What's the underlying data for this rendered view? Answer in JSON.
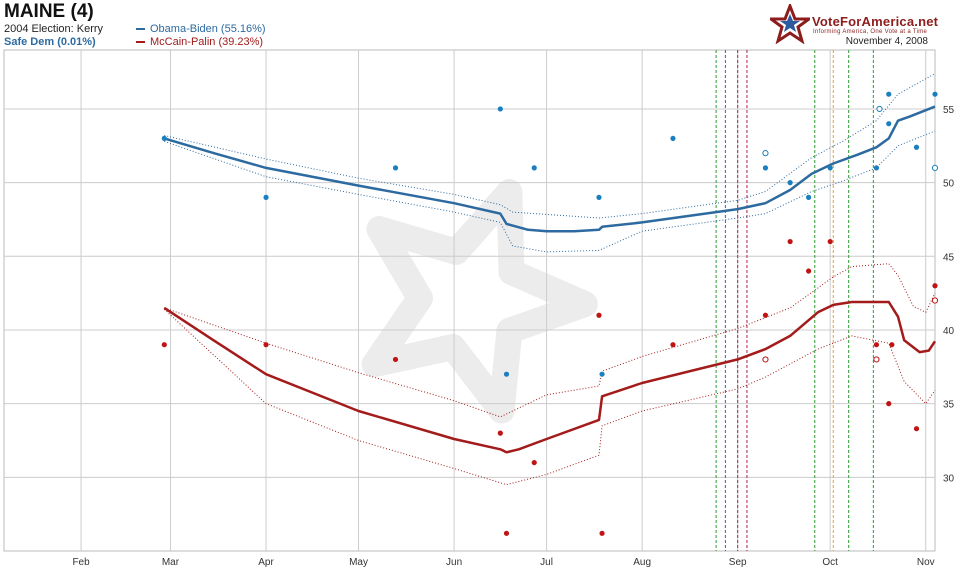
{
  "header": {
    "state": "MAINE (4)",
    "election_2004": "2004 Election: Kerry",
    "status": "Safe Dem (0.01%)",
    "legend_dem": "Obama-Biden (55.16%)",
    "legend_rep": "McCain-Palin (39.23%)",
    "logo_text": "VoteForAmerica.net",
    "logo_tagline": "Informing America, One Vote at a Time",
    "date": "November 4, 2008"
  },
  "colors": {
    "dem": "#2d6a9f",
    "dem_points": "#1a7fc1",
    "rep": "#a31b1b",
    "rep_points": "#c01414",
    "grid": "#cccccc",
    "event_green": "#2f9b2f",
    "event_blue": "#3a5bbf",
    "event_red": "#b0204a",
    "event_orange": "#f0a020"
  },
  "chart_data": {
    "type": "line",
    "x_axis": {
      "type": "date",
      "range": [
        "2008-01-07",
        "2008-11-04"
      ],
      "tick_labels": [
        "Feb",
        "Mar",
        "Apr",
        "May",
        "Jun",
        "Jul",
        "Aug",
        "Sep",
        "Oct",
        "Nov"
      ],
      "ticks": [
        "2008-02-01",
        "2008-03-01",
        "2008-04-01",
        "2008-05-01",
        "2008-06-01",
        "2008-07-01",
        "2008-08-01",
        "2008-09-01",
        "2008-10-01",
        "2008-11-01"
      ]
    },
    "y_axis": {
      "range": [
        25,
        59
      ],
      "ticks": [
        30,
        35,
        40,
        45,
        50,
        55
      ],
      "position": "right"
    },
    "grid": true,
    "series": [
      {
        "name": "Obama-Biden (55.16%)",
        "color": "#2d6a9f",
        "trend": [
          [
            "2008-02-28",
            53.0
          ],
          [
            "2008-03-15",
            52.0
          ],
          [
            "2008-04-01",
            51.0
          ],
          [
            "2008-05-01",
            49.8
          ],
          [
            "2008-06-01",
            48.6
          ],
          [
            "2008-06-16",
            47.9
          ],
          [
            "2008-06-18",
            47.2
          ],
          [
            "2008-06-25",
            46.8
          ],
          [
            "2008-07-01",
            46.7
          ],
          [
            "2008-07-10",
            46.7
          ],
          [
            "2008-07-18",
            46.8
          ],
          [
            "2008-07-19",
            47.0
          ],
          [
            "2008-08-01",
            47.3
          ],
          [
            "2008-09-01",
            48.2
          ],
          [
            "2008-09-10",
            48.6
          ],
          [
            "2008-09-18",
            49.5
          ],
          [
            "2008-09-25",
            50.6
          ],
          [
            "2008-10-02",
            51.3
          ],
          [
            "2008-10-10",
            51.9
          ],
          [
            "2008-10-16",
            52.4
          ],
          [
            "2008-10-20",
            53.0
          ],
          [
            "2008-10-23",
            54.2
          ],
          [
            "2008-10-27",
            54.5
          ],
          [
            "2008-11-04",
            55.16
          ]
        ],
        "upper": [
          [
            "2008-02-28",
            53.2
          ],
          [
            "2008-04-01",
            51.6
          ],
          [
            "2008-05-01",
            50.3
          ],
          [
            "2008-06-01",
            49.2
          ],
          [
            "2008-06-16",
            48.5
          ],
          [
            "2008-06-20",
            48.0
          ],
          [
            "2008-07-18",
            47.6
          ],
          [
            "2008-08-01",
            47.9
          ],
          [
            "2008-09-01",
            48.8
          ],
          [
            "2008-09-10",
            49.4
          ],
          [
            "2008-09-25",
            51.7
          ],
          [
            "2008-10-05",
            52.8
          ],
          [
            "2008-10-16",
            54.2
          ],
          [
            "2008-10-23",
            56.0
          ],
          [
            "2008-11-04",
            57.4
          ]
        ],
        "lower": [
          [
            "2008-02-28",
            52.8
          ],
          [
            "2008-04-01",
            50.4
          ],
          [
            "2008-05-01",
            49.2
          ],
          [
            "2008-06-01",
            48.0
          ],
          [
            "2008-06-16",
            47.3
          ],
          [
            "2008-06-20",
            45.7
          ],
          [
            "2008-07-01",
            45.3
          ],
          [
            "2008-07-18",
            45.4
          ],
          [
            "2008-08-01",
            46.7
          ],
          [
            "2008-09-01",
            47.6
          ],
          [
            "2008-09-10",
            47.9
          ],
          [
            "2008-09-25",
            49.4
          ],
          [
            "2008-10-05",
            50.1
          ],
          [
            "2008-10-16",
            51.0
          ],
          [
            "2008-10-23",
            52.5
          ],
          [
            "2008-11-04",
            53.5
          ]
        ],
        "points": [
          [
            "2008-02-28",
            53
          ],
          [
            "2008-04-01",
            49
          ],
          [
            "2008-05-13",
            51
          ],
          [
            "2008-06-16",
            55
          ],
          [
            "2008-06-27",
            51
          ],
          [
            "2008-07-18",
            49
          ],
          [
            "2008-07-19",
            37
          ],
          [
            "2008-06-18",
            37
          ],
          [
            "2008-08-11",
            53
          ],
          [
            "2008-09-10",
            51
          ],
          [
            "2008-09-18",
            50
          ],
          [
            "2008-09-24",
            49
          ],
          [
            "2008-10-01",
            51
          ],
          [
            "2008-10-16",
            51
          ],
          [
            "2008-10-20",
            56
          ],
          [
            "2008-10-20",
            54
          ],
          [
            "2008-10-29",
            52.4
          ],
          [
            "2008-11-04",
            56
          ]
        ],
        "open_points": [
          [
            "2008-09-10",
            52
          ],
          [
            "2008-10-17",
            55
          ],
          [
            "2008-11-04",
            51
          ]
        ]
      },
      {
        "name": "McCain-Palin (39.23%)",
        "color": "#a31b1b",
        "trend": [
          [
            "2008-02-28",
            41.5
          ],
          [
            "2008-03-15",
            39.3
          ],
          [
            "2008-04-01",
            37.0
          ],
          [
            "2008-05-01",
            34.5
          ],
          [
            "2008-06-01",
            32.6
          ],
          [
            "2008-06-16",
            31.9
          ],
          [
            "2008-06-18",
            31.7
          ],
          [
            "2008-06-22",
            31.9
          ],
          [
            "2008-07-01",
            32.6
          ],
          [
            "2008-07-18",
            33.9
          ],
          [
            "2008-07-19",
            35.5
          ],
          [
            "2008-08-01",
            36.4
          ],
          [
            "2008-09-01",
            38.0
          ],
          [
            "2008-09-10",
            38.7
          ],
          [
            "2008-09-18",
            39.6
          ],
          [
            "2008-09-27",
            41.2
          ],
          [
            "2008-10-02",
            41.7
          ],
          [
            "2008-10-08",
            41.9
          ],
          [
            "2008-10-20",
            41.9
          ],
          [
            "2008-10-23",
            40.9
          ],
          [
            "2008-10-25",
            39.3
          ],
          [
            "2008-10-30",
            38.5
          ],
          [
            "2008-11-02",
            38.6
          ],
          [
            "2008-11-04",
            39.23
          ]
        ],
        "upper": [
          [
            "2008-02-28",
            41.5
          ],
          [
            "2008-04-01",
            39.1
          ],
          [
            "2008-05-01",
            37.1
          ],
          [
            "2008-06-01",
            35.2
          ],
          [
            "2008-06-16",
            34.1
          ],
          [
            "2008-07-01",
            35.6
          ],
          [
            "2008-07-18",
            36.2
          ],
          [
            "2008-07-19",
            37.2
          ],
          [
            "2008-08-01",
            38.2
          ],
          [
            "2008-09-01",
            40.1
          ],
          [
            "2008-09-18",
            41.5
          ],
          [
            "2008-10-02",
            43.6
          ],
          [
            "2008-10-08",
            44.3
          ],
          [
            "2008-10-20",
            44.5
          ],
          [
            "2008-10-23",
            43.7
          ],
          [
            "2008-10-28",
            41.6
          ],
          [
            "2008-11-01",
            41.2
          ],
          [
            "2008-11-04",
            42.5
          ]
        ],
        "lower": [
          [
            "2008-02-28",
            41.4
          ],
          [
            "2008-04-01",
            35.0
          ],
          [
            "2008-05-01",
            32.5
          ],
          [
            "2008-06-01",
            30.6
          ],
          [
            "2008-06-18",
            29.5
          ],
          [
            "2008-07-01",
            30.2
          ],
          [
            "2008-07-18",
            31.5
          ],
          [
            "2008-07-19",
            33.5
          ],
          [
            "2008-08-01",
            34.5
          ],
          [
            "2008-09-01",
            36.0
          ],
          [
            "2008-09-10",
            36.8
          ],
          [
            "2008-09-27",
            38.7
          ],
          [
            "2008-10-08",
            39.6
          ],
          [
            "2008-10-20",
            39.1
          ],
          [
            "2008-10-25",
            36.5
          ],
          [
            "2008-11-01",
            35.0
          ],
          [
            "2008-11-04",
            35.9
          ]
        ],
        "points": [
          [
            "2008-02-28",
            39
          ],
          [
            "2008-04-01",
            39
          ],
          [
            "2008-05-13",
            38
          ],
          [
            "2008-06-16",
            33
          ],
          [
            "2008-06-18",
            26.2
          ],
          [
            "2008-06-27",
            31
          ],
          [
            "2008-07-18",
            41
          ],
          [
            "2008-07-19",
            26.2
          ],
          [
            "2008-08-11",
            39
          ],
          [
            "2008-09-10",
            41
          ],
          [
            "2008-09-18",
            46
          ],
          [
            "2008-09-24",
            44
          ],
          [
            "2008-10-01",
            46
          ],
          [
            "2008-10-16",
            39
          ],
          [
            "2008-10-20",
            35
          ],
          [
            "2008-10-21",
            39
          ],
          [
            "2008-10-29",
            33.3
          ],
          [
            "2008-11-04",
            43
          ]
        ],
        "open_points": [
          [
            "2008-09-10",
            38
          ],
          [
            "2008-10-16",
            38
          ],
          [
            "2008-11-04",
            42
          ]
        ]
      }
    ],
    "event_lines": [
      {
        "date": "2008-08-25",
        "color": "#2f9b2f"
      },
      {
        "date": "2008-08-28",
        "color": "#3a5bbf"
      },
      {
        "date": "2008-09-01",
        "color": "#b0204a"
      },
      {
        "date": "2008-09-04",
        "color": "#b0204a"
      },
      {
        "date": "2008-09-26",
        "color": "#2f9b2f"
      },
      {
        "date": "2008-10-02",
        "color": "#f0a020"
      },
      {
        "date": "2008-10-07",
        "color": "#2f9b2f"
      },
      {
        "date": "2008-10-15",
        "color": "#2f9b2f"
      }
    ]
  }
}
